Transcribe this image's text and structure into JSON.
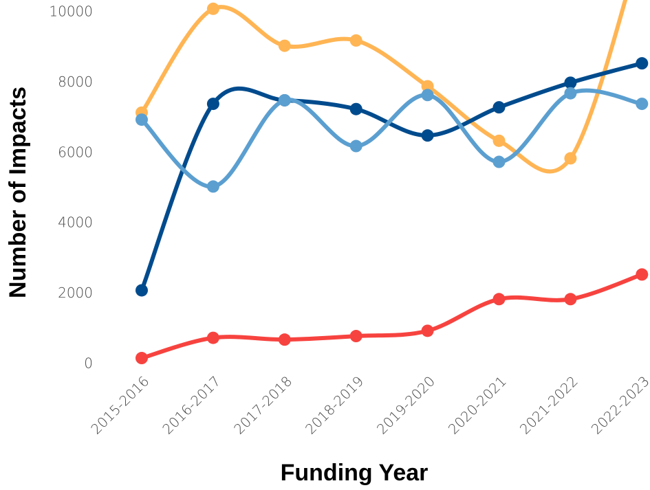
{
  "chart_data": {
    "type": "line",
    "xlabel": "Funding Year",
    "ylabel": "Number of Impacts",
    "categories": [
      "2015-2016",
      "2016-2017",
      "2017-2018",
      "2018-2019",
      "2019-2020",
      "2020-2021",
      "2021-2022",
      "2022-2023"
    ],
    "series": [
      {
        "color": "#ffb554",
        "values": [
          7150,
          10100,
          9050,
          9200,
          7900,
          6350,
          5850,
          12000
        ]
      },
      {
        "color": "#004b8d",
        "values": [
          2100,
          7400,
          7500,
          7250,
          6500,
          7300,
          8000,
          8550
        ]
      },
      {
        "color": "#5b9fd0",
        "values": [
          6950,
          5050,
          7500,
          6200,
          7650,
          5750,
          7700,
          7400
        ]
      },
      {
        "color": "#f7433f",
        "values": [
          175,
          750,
          700,
          800,
          950,
          1850,
          1850,
          2550
        ]
      }
    ],
    "ylim": [
      0,
      10350
    ],
    "yticks": [
      0,
      2000,
      4000,
      6000,
      8000,
      10000
    ],
    "grid": false
  }
}
